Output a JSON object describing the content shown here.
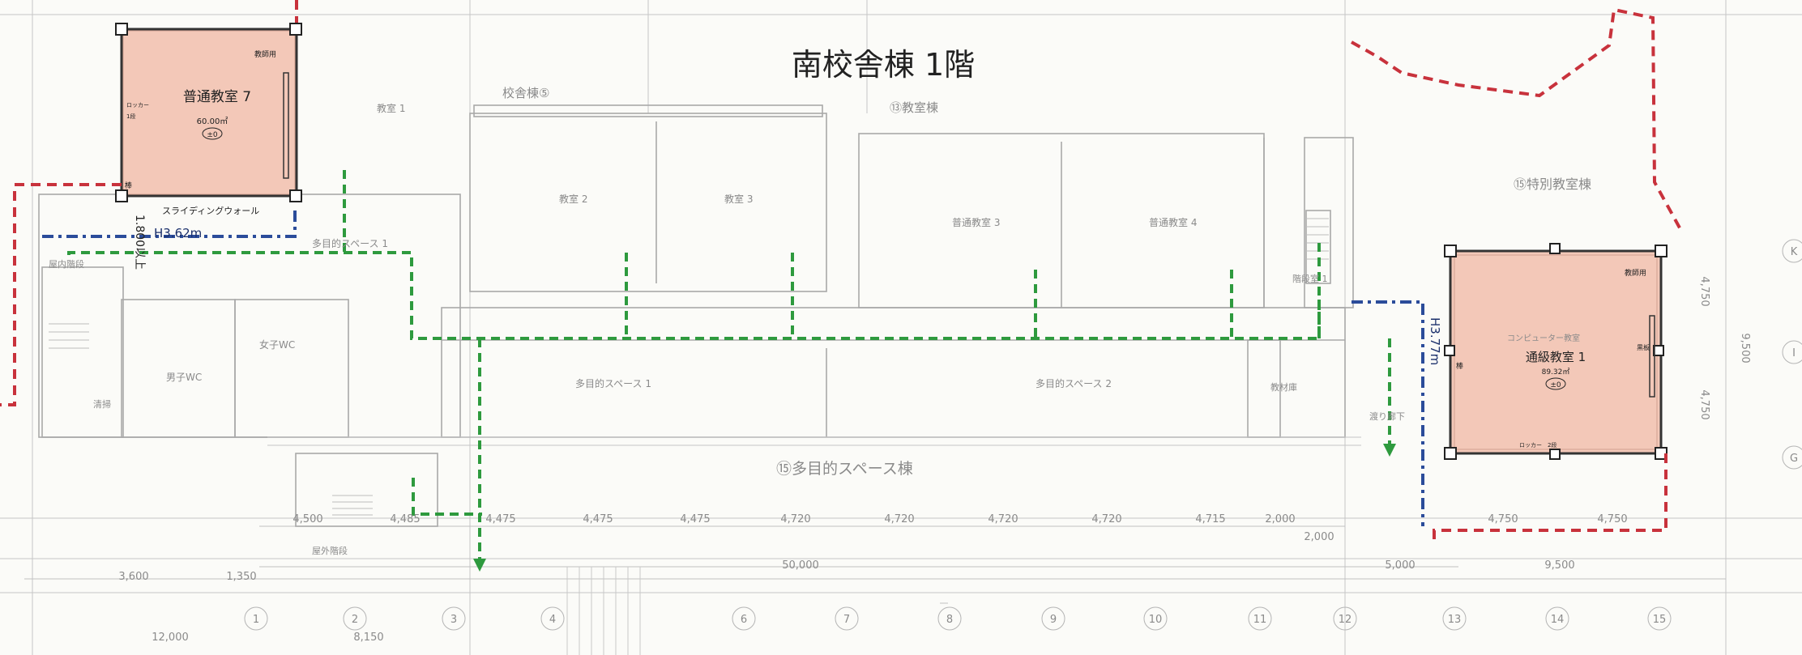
{
  "title": "南校舎棟 1階",
  "colors": {
    "highlight_room": "#f3c8b8",
    "boundary_red": "#c8323c",
    "route_green": "#2e9a3e",
    "route_blue": "#2b4c9a",
    "label_blue": "#1a2f6b"
  },
  "highlight_rooms": [
    {
      "name": "普通教室 7",
      "area": "60.00㎡",
      "level": "±0",
      "teacher_label": "教師用",
      "side_label_1": "ロッカー",
      "side_label_2": "1段",
      "mark": "棒"
    },
    {
      "name": "通級教室 1",
      "area": "89.32㎡",
      "level": "±0",
      "teacher_label": "教師用",
      "bottom_label_1": "ロッカー",
      "bottom_label_2": "2段",
      "mark": "棒",
      "side_mark": "黒板",
      "faint_label": "コンピューター教室"
    }
  ],
  "wing_labels": {
    "school_building_5": "校舎棟⑤",
    "classroom_building_13": "⑬教室棟",
    "special_classroom_building_15": "⑮特別教室棟",
    "multipurpose_space_building_15": "⑮多目的スペース棟"
  },
  "annotations": {
    "sliding_wall": "スライディングウォール",
    "h3_62": "H3.62m",
    "h3_77": "H3.77m",
    "height_over": "1.800以上"
  },
  "room_labels": {
    "classroom1": "教室 1",
    "classroom2": "教室 2",
    "classroom3": "教室 3",
    "normal3": "普通教室 3",
    "normal4": "普通教室 4",
    "multi_space1": "多目的スペース 1",
    "multi_space2": "多目的スペース 2",
    "multi_top": "多目的スペース 1",
    "indoor_stairs": "屋内階段",
    "stairs1": "階段室 1",
    "boys_wc": "男子WC",
    "girls_wc": "女子WC",
    "janitor": "清掃",
    "corridor": "渡り廊下",
    "teacher_prep": "教材庫",
    "outdoor_stairs": "屋外階段"
  },
  "dimensions": {
    "top_row": [
      "4,500",
      "4,485",
      "4,475",
      "4,475",
      "4,475",
      "4,720",
      "4,720",
      "4,720",
      "4,720",
      "4,715",
      "2,000"
    ],
    "second_row": [
      "2,000",
      "5,000",
      "9,500"
    ],
    "right_spans": [
      "4,750",
      "4,750"
    ],
    "total": "50,000",
    "left_spans": [
      "3,600",
      "1,350"
    ],
    "bottom_spans": [
      "12,000",
      "8,150"
    ],
    "vertical": [
      "4,750",
      "9,500",
      "4,750"
    ]
  },
  "grid_axes": [
    "1",
    "2",
    "3",
    "4",
    "6",
    "7",
    "8",
    "9",
    "10",
    "11",
    "12",
    "13",
    "14",
    "15"
  ],
  "row_axes": [
    "K",
    "I",
    "G"
  ]
}
